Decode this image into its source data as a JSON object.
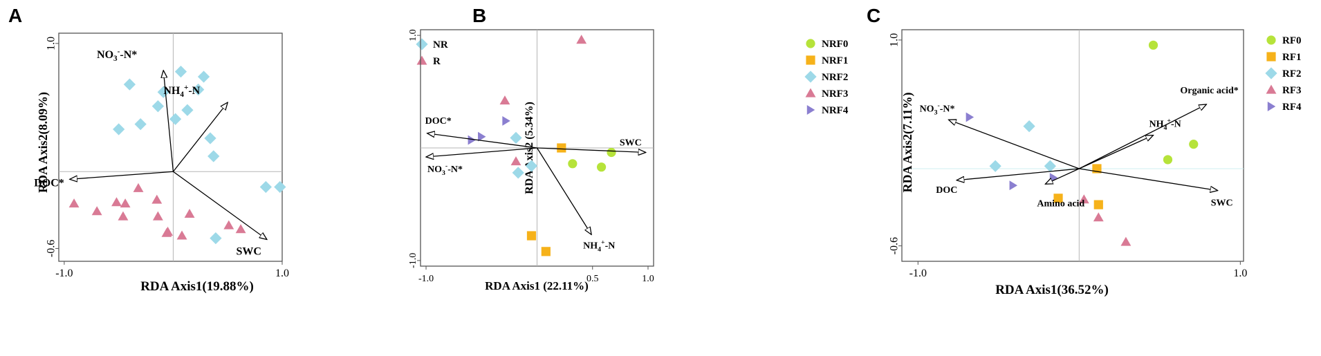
{
  "figure": {
    "panels": [
      "A",
      "B",
      "C"
    ]
  },
  "chart_data": [
    {
      "panel": "A",
      "type": "scatter",
      "subtype": "rda-biplot",
      "xlabel": "RDA Axis1(19.88%)",
      "ylabel": "RDA Axis2(8.09%)",
      "xlim": [
        -1.05,
        1.0
      ],
      "ylim": [
        -0.7,
        1.08
      ],
      "xticks": [
        {
          "value": -1.0,
          "label": "-1.0"
        },
        {
          "value": 1.0,
          "label": "1.0"
        }
      ],
      "yticks": [
        {
          "value": 1.0,
          "label": "1.0"
        },
        {
          "value": -0.6,
          "label": "-0.6"
        }
      ],
      "legend": [
        {
          "label": "NR",
          "marker": "diamond",
          "color": "#9DD9E8"
        },
        {
          "label": "R",
          "marker": "triangle",
          "color": "#D97A95"
        }
      ],
      "vectors": [
        {
          "label": "NO3-N*",
          "sup": "-",
          "sub": "3",
          "base": "NO",
          "rest": "-N*",
          "x": -0.09,
          "y": 0.79
        },
        {
          "label": "NH4+-N",
          "sub": "4",
          "sup": "+",
          "base": "NH",
          "rest": "-N",
          "x": 0.5,
          "y": 0.54
        },
        {
          "label": "DOC*",
          "x": -0.95,
          "y": -0.06
        },
        {
          "label": "SWC",
          "x": 0.86,
          "y": -0.53
        }
      ],
      "series": [
        {
          "name": "NR",
          "points": [
            [
              -0.4,
              0.68
            ],
            [
              0.07,
              0.78
            ],
            [
              0.28,
              0.74
            ],
            [
              -0.09,
              0.62
            ],
            [
              0.23,
              0.64
            ],
            [
              -0.14,
              0.51
            ],
            [
              0.13,
              0.48
            ],
            [
              -0.3,
              0.37
            ],
            [
              0.02,
              0.41
            ],
            [
              -0.5,
              0.33
            ],
            [
              0.34,
              0.26
            ],
            [
              0.37,
              0.12
            ],
            [
              0.85,
              -0.12
            ],
            [
              0.98,
              -0.12
            ],
            [
              0.39,
              -0.52
            ]
          ]
        },
        {
          "name": "R",
          "points": [
            [
              -0.91,
              -0.25
            ],
            [
              -0.7,
              -0.31
            ],
            [
              -0.52,
              -0.24
            ],
            [
              -0.44,
              -0.25
            ],
            [
              -0.46,
              -0.35
            ],
            [
              -0.32,
              -0.13
            ],
            [
              -0.15,
              -0.22
            ],
            [
              -0.14,
              -0.35
            ],
            [
              -0.05,
              -0.47
            ],
            [
              -0.06,
              -0.48
            ],
            [
              0.08,
              -0.5
            ],
            [
              0.15,
              -0.33
            ],
            [
              0.51,
              -0.42
            ],
            [
              0.62,
              -0.45
            ]
          ]
        }
      ]
    },
    {
      "panel": "B",
      "type": "scatter",
      "subtype": "rda-biplot",
      "xlabel": "RDA Axis1 (22.11%)",
      "ylabel": "RDA Axis2 (5.34%)",
      "xlim": [
        -1.05,
        1.05
      ],
      "ylim": [
        -1.05,
        1.05
      ],
      "xticks": [
        {
          "value": -1.0,
          "label": "-1.0"
        },
        {
          "value": 0.5,
          "label": "0.5"
        },
        {
          "value": 1.0,
          "label": "1.0"
        }
      ],
      "yticks": [
        {
          "value": 1.0,
          "label": "1.0"
        },
        {
          "value": -1.0,
          "label": "-1.0"
        }
      ],
      "legend": [
        {
          "label": "NRF0",
          "marker": "circle",
          "color": "#B6E33A"
        },
        {
          "label": "NRF1",
          "marker": "square",
          "color": "#F6B21A"
        },
        {
          "label": "NRF2",
          "marker": "diamond",
          "color": "#9DD9E8"
        },
        {
          "label": "NRF3",
          "marker": "triangle",
          "color": "#D97A95"
        },
        {
          "label": "NRF4",
          "marker": "triangle-right",
          "color": "#8B7FD0"
        }
      ],
      "vectors": [
        {
          "label": "DOC*",
          "x": -0.99,
          "y": 0.13
        },
        {
          "label": "NO3--N*",
          "base": "NO",
          "sub": "3",
          "sup": "-",
          "rest": "-N*",
          "x": -1.0,
          "y": -0.08
        },
        {
          "label": "SWC",
          "x": 0.98,
          "y": -0.04
        },
        {
          "label": "NH4+-N",
          "base": "NH",
          "sub": "4",
          "sup": "+",
          "rest": "-N",
          "x": 0.49,
          "y": -0.77
        }
      ],
      "series": [
        {
          "name": "NRF0",
          "points": [
            [
              0.32,
              -0.14
            ],
            [
              0.58,
              -0.17
            ],
            [
              0.67,
              -0.04
            ]
          ]
        },
        {
          "name": "NRF1",
          "points": [
            [
              0.22,
              0.0
            ],
            [
              -0.05,
              -0.78
            ],
            [
              0.08,
              -0.92
            ]
          ]
        },
        {
          "name": "NRF2",
          "points": [
            [
              -0.19,
              0.09
            ],
            [
              -0.05,
              -0.16
            ],
            [
              -0.17,
              -0.22
            ]
          ]
        },
        {
          "name": "NRF3",
          "points": [
            [
              0.4,
              0.96
            ],
            [
              -0.29,
              0.42
            ],
            [
              -0.19,
              -0.12
            ]
          ]
        },
        {
          "name": "NRF4",
          "points": [
            [
              -0.28,
              0.24
            ],
            [
              -0.5,
              0.1
            ],
            [
              -0.59,
              0.07
            ]
          ]
        }
      ]
    },
    {
      "panel": "C",
      "type": "scatter",
      "subtype": "rda-biplot",
      "xlabel": "RDA Axis1(36.52%)",
      "ylabel": "RDA Axis2(7.11%)",
      "xlim": [
        -1.1,
        1.02
      ],
      "ylim": [
        -0.72,
        1.08
      ],
      "xticks": [
        {
          "value": -1.0,
          "label": "-1.0"
        },
        {
          "value": 1.0,
          "label": "1.0"
        }
      ],
      "yticks": [
        {
          "value": 1.0,
          "label": "1.0"
        },
        {
          "value": -0.6,
          "label": "-0.6"
        }
      ],
      "legend": [
        {
          "label": "RF0",
          "marker": "circle",
          "color": "#B6E33A"
        },
        {
          "label": "RF1",
          "marker": "square",
          "color": "#F6B21A"
        },
        {
          "label": "RF2",
          "marker": "diamond",
          "color": "#9DD9E8"
        },
        {
          "label": "RF3",
          "marker": "triangle",
          "color": "#D97A95"
        },
        {
          "label": "RF4",
          "marker": "triangle-right",
          "color": "#8B7FD0"
        }
      ],
      "vectors": [
        {
          "label": "NO3--N*",
          "base": "NO",
          "sub": "3",
          "sup": "-",
          "rest": "-N*",
          "x": -0.81,
          "y": 0.38
        },
        {
          "label": "Organic acid*",
          "x": 0.79,
          "y": 0.5
        },
        {
          "label": "NH4+-N",
          "base": "NH",
          "sub": "4",
          "sup": "+",
          "rest": "-N",
          "x": 0.46,
          "y": 0.26
        },
        {
          "label": "DOC",
          "x": -0.76,
          "y": -0.09
        },
        {
          "label": "SWC",
          "x": 0.86,
          "y": -0.17
        },
        {
          "label": "Amino acid",
          "x": -0.21,
          "y": -0.12
        }
      ],
      "series": [
        {
          "name": "RF0",
          "points": [
            [
              0.46,
              0.96
            ],
            [
              0.71,
              0.19
            ],
            [
              0.55,
              0.07
            ]
          ]
        },
        {
          "name": "RF1",
          "points": [
            [
              0.11,
              0.0
            ],
            [
              -0.13,
              -0.23
            ],
            [
              0.12,
              -0.28
            ]
          ]
        },
        {
          "name": "RF2",
          "points": [
            [
              -0.31,
              0.33
            ],
            [
              -0.52,
              0.02
            ],
            [
              -0.18,
              0.02
            ]
          ]
        },
        {
          "name": "RF3",
          "points": [
            [
              0.03,
              -0.24
            ],
            [
              0.12,
              -0.38
            ],
            [
              0.29,
              -0.57
            ]
          ]
        },
        {
          "name": "RF4",
          "points": [
            [
              -0.68,
              0.4
            ],
            [
              -0.41,
              -0.13
            ],
            [
              -0.16,
              -0.07
            ]
          ]
        }
      ]
    }
  ]
}
